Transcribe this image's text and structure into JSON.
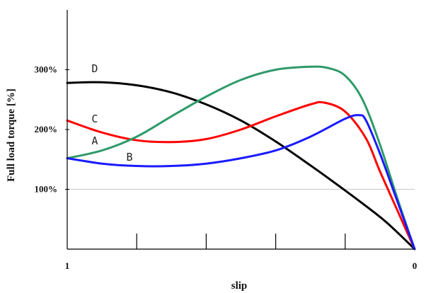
{
  "chart_data": {
    "type": "line",
    "title": "",
    "xlabel": "slip",
    "ylabel": "Full load torque [%]",
    "xlim": [
      1,
      0
    ],
    "ylim": [
      0,
      400
    ],
    "x_tick_labels": [
      {
        "x": 1,
        "label": "1"
      },
      {
        "x": 0,
        "label": "0"
      }
    ],
    "y_ticks": [
      {
        "y": 100,
        "label": "100%"
      },
      {
        "y": 200,
        "label": "200%"
      },
      {
        "y": 300,
        "label": "300%"
      }
    ],
    "gridlines_y": [
      100
    ],
    "legend": "none",
    "series": [
      {
        "name": "D",
        "color": "#000000",
        "x": [
          1.0,
          0.9,
          0.8,
          0.7,
          0.6,
          0.5,
          0.4,
          0.3,
          0.2,
          0.1,
          0.05,
          0.0
        ],
        "y": [
          278,
          279,
          274,
          262,
          242,
          215,
          180,
          140,
          98,
          54,
          28,
          0
        ]
      },
      {
        "name": "C",
        "color": "#ff0000",
        "x": [
          1.0,
          0.9,
          0.8,
          0.7,
          0.6,
          0.5,
          0.4,
          0.3,
          0.26,
          0.2,
          0.14,
          0.1,
          0.05,
          0.0
        ],
        "y": [
          215,
          195,
          182,
          179,
          184,
          200,
          222,
          242,
          245,
          230,
          185,
          130,
          65,
          0
        ]
      },
      {
        "name": "A",
        "color": "#2e9a6a",
        "x": [
          1.0,
          0.9,
          0.8,
          0.7,
          0.6,
          0.5,
          0.4,
          0.3,
          0.25,
          0.2,
          0.15,
          0.1,
          0.05,
          0.0
        ],
        "y": [
          152,
          165,
          188,
          222,
          255,
          283,
          300,
          305,
          303,
          290,
          250,
          175,
          85,
          0
        ]
      },
      {
        "name": "B",
        "color": "#1a1aff",
        "x": [
          1.0,
          0.9,
          0.8,
          0.7,
          0.6,
          0.5,
          0.4,
          0.3,
          0.2,
          0.16,
          0.14,
          0.1,
          0.05,
          0.0
        ],
        "y": [
          152,
          143,
          139,
          139,
          143,
          152,
          165,
          188,
          218,
          224,
          215,
          160,
          80,
          0
        ]
      }
    ],
    "curve_labels": [
      {
        "text": "D",
        "x": 0.93,
        "y": 296
      },
      {
        "text": "C",
        "x": 0.93,
        "y": 212
      },
      {
        "text": "A",
        "x": 0.93,
        "y": 175
      },
      {
        "text": "B",
        "x": 0.83,
        "y": 148
      }
    ]
  }
}
